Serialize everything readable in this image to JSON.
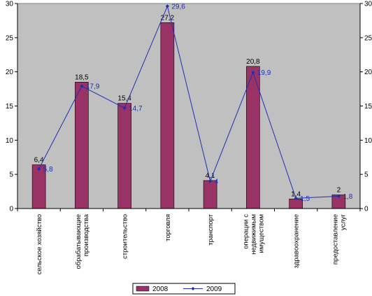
{
  "chart_data": {
    "type": "bar",
    "categories": [
      "сельское хозяйство",
      "обрабатывающие производства",
      "строительство",
      "торговля",
      "транспорт",
      "операции с недвижимым имуществом",
      "здравоохранение",
      "предоставление услуг"
    ],
    "category_label_lines": [
      [
        "сельское хозяйство"
      ],
      [
        "обрабатывающие",
        "производства"
      ],
      [
        "строительство"
      ],
      [
        "торговля"
      ],
      [
        "транспорт"
      ],
      [
        "операции с",
        "недвижимым",
        "имуществом"
      ],
      [
        "здравоохранение"
      ],
      [
        "предоставление",
        "услуг"
      ]
    ],
    "series": [
      {
        "name": "2008",
        "type": "bar",
        "color": "#993366",
        "values": [
          6.4,
          18.5,
          15.4,
          27.2,
          4.1,
          20.8,
          1.4,
          2
        ],
        "labels": [
          "6,4",
          "18,5",
          "15,4",
          "27,2",
          "4,1",
          "20,8",
          "1,4",
          "2"
        ]
      },
      {
        "name": "2009",
        "type": "line",
        "axis": "secondary",
        "color": "#1f2db5",
        "values": [
          5.8,
          17.9,
          14.7,
          29.6,
          4,
          19.9,
          1.5,
          1.8
        ],
        "labels": [
          "5,8",
          "17,9",
          "14,7",
          "29,6",
          "4",
          "19,9",
          "1,5",
          "1,8"
        ]
      }
    ],
    "ylim": [
      0,
      30
    ],
    "y_ticks": [
      0,
      5,
      10,
      15,
      20,
      25,
      30
    ],
    "y2lim": [
      0,
      30
    ],
    "y2_ticks": [
      0,
      5,
      10,
      15,
      20,
      25,
      30
    ],
    "grid": false,
    "plot_background": "#c0c0c0",
    "legend_position": "bottom"
  }
}
